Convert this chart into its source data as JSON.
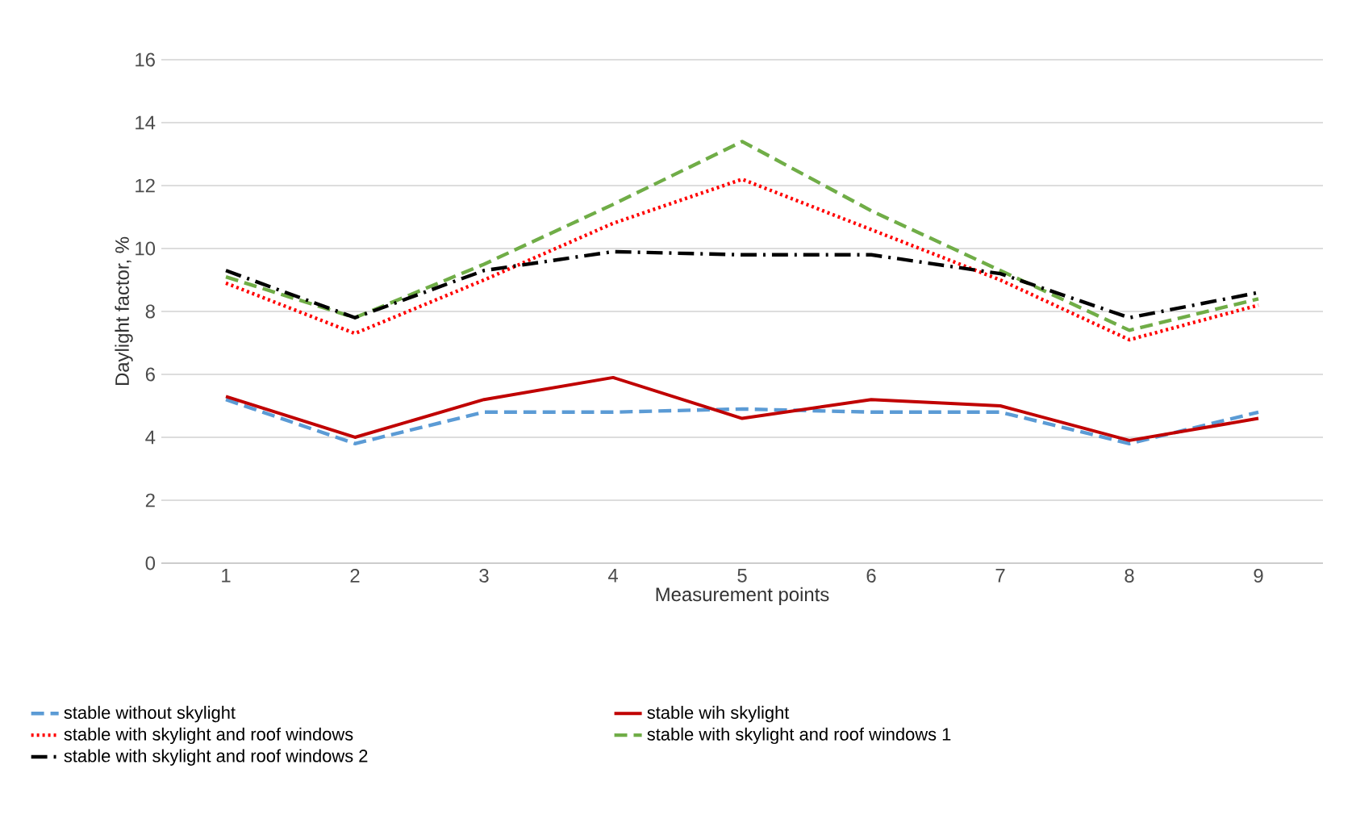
{
  "chart_data": {
    "type": "line",
    "xlabel": "Measurement points",
    "ylabel": "Daylight factor, %",
    "categories": [
      "1",
      "2",
      "3",
      "4",
      "5",
      "6",
      "7",
      "8",
      "9"
    ],
    "ylim": [
      0,
      16
    ],
    "yticks": [
      0,
      2,
      4,
      6,
      8,
      10,
      12,
      14,
      16
    ],
    "grid": "y",
    "legend": "bottom",
    "marker": "none",
    "series": [
      {
        "name": "stable without skylight",
        "color": "#5b9bd5",
        "line_style": "dashed",
        "values": [
          5.2,
          3.8,
          4.8,
          4.8,
          4.9,
          4.8,
          4.8,
          3.8,
          4.8
        ]
      },
      {
        "name": "stable wih skylight",
        "color": "#c00000",
        "line_style": "solid",
        "values": [
          5.3,
          4.0,
          5.2,
          5.9,
          4.6,
          5.2,
          5.0,
          3.9,
          4.6
        ]
      },
      {
        "name": "stable with skylight and roof windows",
        "color": "#ff0000",
        "line_style": "dotted",
        "values": [
          8.9,
          7.3,
          9.0,
          10.8,
          12.2,
          10.6,
          9.0,
          7.1,
          8.2
        ]
      },
      {
        "name": "stable with skylight and roof windows 1",
        "color": "#70ad47",
        "line_style": "dashed",
        "values": [
          9.1,
          7.8,
          9.5,
          11.4,
          13.4,
          11.2,
          9.3,
          7.4,
          8.4
        ]
      },
      {
        "name": "stable with skylight and roof windows 2",
        "color": "#000000",
        "line_style": "dashdot",
        "values": [
          9.3,
          7.8,
          9.3,
          9.9,
          9.8,
          9.8,
          9.2,
          7.8,
          8.6
        ]
      }
    ]
  }
}
